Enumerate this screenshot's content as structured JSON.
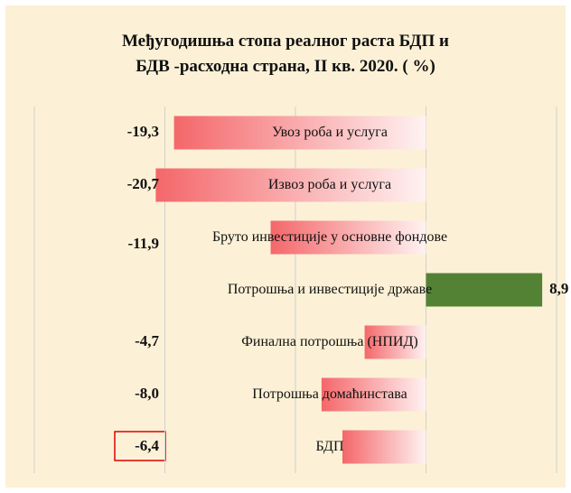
{
  "chart_data": {
    "type": "hbar",
    "title": [
      "Међугодишња стопа реалног раста БДП и",
      "БДВ -расходна страна, II кв. 2020. ( %)"
    ],
    "categories": [
      "Увоз роба и услуга",
      "Извоз роба и услуга",
      "Бруто инвестиције у основне фондове",
      "Потрошња и инвестиције државе",
      "Финална потрошња (НПИД)",
      "Потрошња домаћинстава",
      "БДП"
    ],
    "values": [
      -19.3,
      -20.7,
      -11.9,
      8.9,
      -4.7,
      -8.0,
      -6.4
    ],
    "value_labels": [
      "-19,3",
      "-20,7",
      "-11,9",
      "8,9",
      "-4,7",
      "-8,0",
      "-6,4"
    ],
    "colors": [
      "#f4676a",
      "#f4676a",
      "#f4676a",
      "#548235",
      "#f4676a",
      "#f4676a",
      "#f4676a"
    ],
    "xlim": [
      -30,
      10
    ],
    "xticks": [
      -30,
      -20,
      -10,
      0,
      10
    ],
    "grid": true
  }
}
